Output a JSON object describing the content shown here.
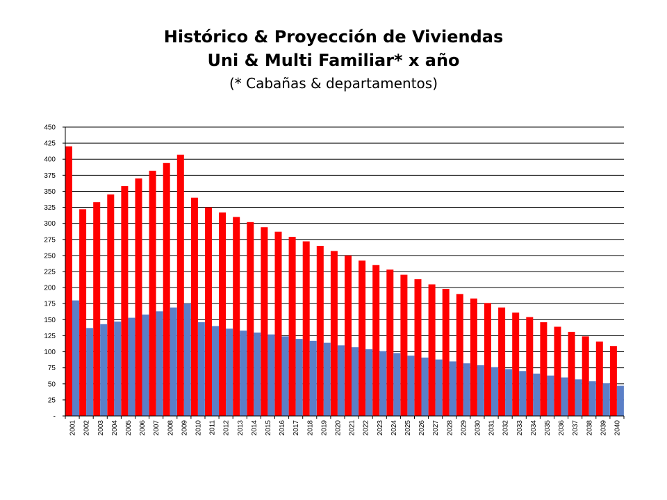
{
  "chart_data": {
    "type": "bar",
    "title": "Histórico & Proyección de Viviendas",
    "subtitle": "Uni & Multi Familiar* x año",
    "note": "(* Cabañas & departamentos)",
    "xlabel": "",
    "ylabel": "",
    "ylim": [
      0,
      450
    ],
    "yticks": [
      0,
      25,
      50,
      75,
      100,
      125,
      150,
      175,
      200,
      225,
      250,
      275,
      300,
      325,
      350,
      375,
      400,
      425,
      450
    ],
    "ytick_labels": [
      "-",
      "25",
      "50",
      "75",
      "100",
      "125",
      "150",
      "175",
      "200",
      "225",
      "250",
      "275",
      "300",
      "325",
      "350",
      "375",
      "400",
      "425",
      "450"
    ],
    "grid": true,
    "legend": "none",
    "categories": [
      "2001",
      "2002",
      "2003",
      "2004",
      "2005",
      "2006",
      "2007",
      "2008",
      "2009",
      "2010",
      "2011",
      "2012",
      "2013",
      "2014",
      "2015",
      "2016",
      "2017",
      "2018",
      "2019",
      "2020",
      "2021",
      "2022",
      "2023",
      "2024",
      "2025",
      "2026",
      "2027",
      "2028",
      "2029",
      "2030",
      "2031",
      "2032",
      "2033",
      "2034",
      "2035",
      "2036",
      "2037",
      "2038",
      "2039",
      "2040"
    ],
    "series": [
      {
        "color": "#ff0000",
        "values": [
          420,
          322,
          333,
          345,
          358,
          370,
          382,
          394,
          407,
          340,
          325,
          317,
          310,
          302,
          294,
          287,
          279,
          272,
          265,
          257,
          250,
          242,
          235,
          228,
          220,
          213,
          205,
          198,
          190,
          183,
          176,
          169,
          161,
          154,
          146,
          139,
          131,
          124,
          116,
          109
        ]
      },
      {
        "color": "#5b7fc7",
        "values": [
          180,
          137,
          143,
          147,
          153,
          158,
          163,
          169,
          175,
          146,
          140,
          136,
          133,
          130,
          127,
          124,
          120,
          117,
          114,
          110,
          107,
          104,
          101,
          98,
          94,
          91,
          88,
          85,
          82,
          79,
          76,
          73,
          70,
          66,
          63,
          60,
          57,
          54,
          51,
          47
        ]
      }
    ]
  }
}
